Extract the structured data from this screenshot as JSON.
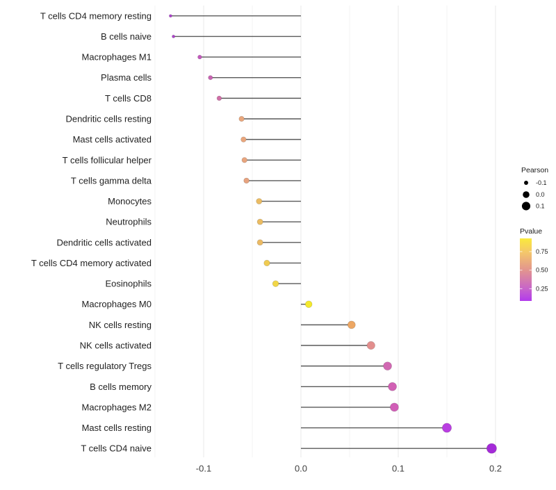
{
  "chart_data": {
    "type": "scatter",
    "subtype": "lollipop",
    "title": "",
    "xlabel": "",
    "ylabel": "",
    "xlim": [
      -0.151,
      0.213
    ],
    "grid": true,
    "x_ticks": [
      {
        "value": -0.1,
        "label": "-0.1"
      },
      {
        "value": 0.0,
        "label": "0.0"
      },
      {
        "value": 0.1,
        "label": "0.1"
      },
      {
        "value": 0.2,
        "label": "0.2"
      }
    ],
    "x_minor_ticks": [
      -0.15,
      -0.05,
      0.05,
      0.15
    ],
    "points": [
      {
        "label": "T cells CD4 memory resting",
        "pearson": -0.134,
        "color": "#AB41CA"
      },
      {
        "label": "B cells naive",
        "pearson": -0.131,
        "color": "#AC43C9"
      },
      {
        "label": "Macrophages M1",
        "pearson": -0.104,
        "color": "#C358BD"
      },
      {
        "label": "Plasma cells",
        "pearson": -0.093,
        "color": "#C963B2"
      },
      {
        "label": "T cells CD8",
        "pearson": -0.084,
        "color": "#D06FA7"
      },
      {
        "label": "Dendritic cells resting",
        "pearson": -0.061,
        "color": "#E9A77D"
      },
      {
        "label": "Mast cells activated",
        "pearson": -0.059,
        "color": "#E9A67C"
      },
      {
        "label": "T cells follicular helper",
        "pearson": -0.058,
        "color": "#E8A57E"
      },
      {
        "label": "T cells gamma delta",
        "pearson": -0.056,
        "color": "#E7A37F"
      },
      {
        "label": "Monocytes",
        "pearson": -0.043,
        "color": "#EBBC63"
      },
      {
        "label": "Neutrophils",
        "pearson": -0.042,
        "color": "#EBBC62"
      },
      {
        "label": "Dendritic cells activated",
        "pearson": -0.042,
        "color": "#EBBA64"
      },
      {
        "label": "T cells CD4 memory activated",
        "pearson": -0.035,
        "color": "#F0CB51"
      },
      {
        "label": "Eosinophils",
        "pearson": -0.026,
        "color": "#F1D647"
      },
      {
        "label": "Macrophages M0",
        "pearson": 0.008,
        "color": "#F4E92C"
      },
      {
        "label": "NK cells resting",
        "pearson": 0.052,
        "color": "#EDA763"
      },
      {
        "label": "NK cells activated",
        "pearson": 0.072,
        "color": "#E28E8D"
      },
      {
        "label": "T cells regulatory  Tregs",
        "pearson": 0.089,
        "color": "#D168B2"
      },
      {
        "label": "B cells memory",
        "pearson": 0.094,
        "color": "#D160B4"
      },
      {
        "label": "Macrophages M2",
        "pearson": 0.096,
        "color": "#D15EB7"
      },
      {
        "label": "Mast cells resting",
        "pearson": 0.15,
        "color": "#B93EE1"
      },
      {
        "label": "T cells CD4 naive",
        "pearson": 0.196,
        "color": "#A42AD8"
      }
    ],
    "legend": {
      "position": "right",
      "pearson": {
        "title": "Pearson",
        "dot_color": "#000000",
        "entries": [
          {
            "label": "-0.1",
            "value": -0.1
          },
          {
            "label": "0.0",
            "value": 0.0
          },
          {
            "label": "0.1",
            "value": 0.1
          }
        ]
      },
      "pvalue": {
        "title": "Pvalue",
        "ticks": [
          {
            "label": "0.75",
            "value": 0.75
          },
          {
            "label": "0.50",
            "value": 0.5
          },
          {
            "label": "0.25",
            "value": 0.25
          }
        ],
        "gradient": [
          {
            "stop": 0.0,
            "color": "#FAEA3C"
          },
          {
            "stop": 0.22,
            "color": "#F4C76A"
          },
          {
            "stop": 0.51,
            "color": "#E2948F"
          },
          {
            "stop": 0.81,
            "color": "#C763CB"
          },
          {
            "stop": 1.0,
            "color": "#B23AEC"
          }
        ]
      }
    },
    "styles": {
      "background": "#FFFFFF",
      "segment_color": "#3C3C3C",
      "grid_major_color": "#E8E8E8",
      "grid_minor_color": "#F3F3F3",
      "axis_text_color": "#404040",
      "category_text_color": "#1F1F1F",
      "legend_text_color": "#1A1A1A"
    }
  }
}
